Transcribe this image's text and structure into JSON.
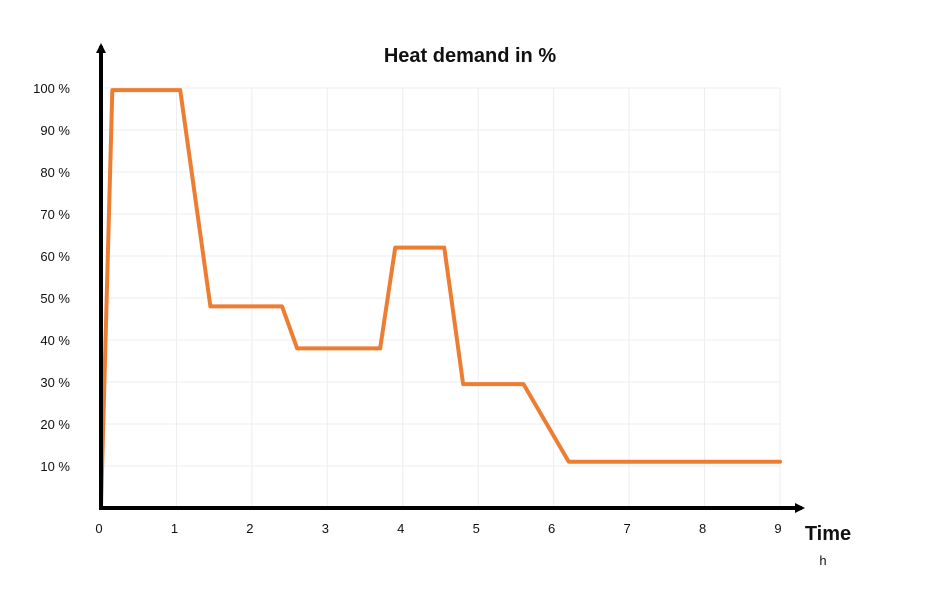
{
  "chart_data": {
    "type": "line",
    "title": "Heat demand in %",
    "xlabel": "Time",
    "xunit": "h",
    "ylabel": "",
    "xlim": [
      0,
      9
    ],
    "ylim": [
      0,
      100
    ],
    "xticks": [
      "0",
      "1",
      "2",
      "3",
      "4",
      "5",
      "6",
      "7",
      "8",
      "9"
    ],
    "yticks": [
      {
        "value": 10,
        "label": "10 %"
      },
      {
        "value": 20,
        "label": "20 %"
      },
      {
        "value": 30,
        "label": "30 %"
      },
      {
        "value": 40,
        "label": "40 %"
      },
      {
        "value": 50,
        "label": "50 %"
      },
      {
        "value": 60,
        "label": "60 %"
      },
      {
        "value": 70,
        "label": "70 %"
      },
      {
        "value": 80,
        "label": "80 %"
      },
      {
        "value": 90,
        "label": "90 %"
      },
      {
        "value": 100,
        "label": "100 %"
      }
    ],
    "grid": true,
    "series": [
      {
        "x": [
          0,
          0.15,
          1.05,
          1.45,
          2.4,
          2.6,
          3.7,
          3.9,
          4.55,
          4.8,
          5.6,
          6.2,
          9.0
        ],
        "y": [
          0,
          99.5,
          99.5,
          48,
          48,
          38,
          38,
          62,
          62,
          29.5,
          29.5,
          11,
          11
        ]
      }
    ]
  },
  "colors": {
    "series": "#ED7D31",
    "title": "#ED7D31",
    "axis": "#000000",
    "grid": "#EEEEEE"
  }
}
